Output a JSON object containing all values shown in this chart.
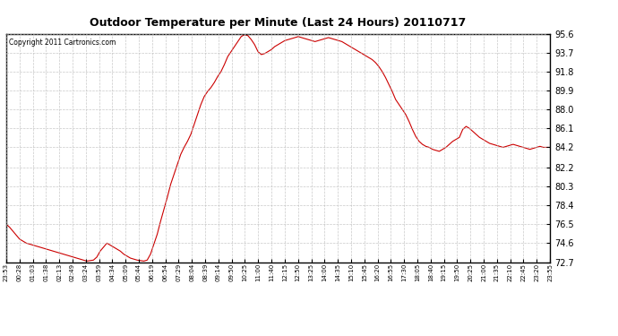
{
  "title": "Outdoor Temperature per Minute (Last 24 Hours) 20110717",
  "copyright": "Copyright 2011 Cartronics.com",
  "line_color": "#cc0000",
  "bg_color": "#ffffff",
  "plot_bg_color": "#ffffff",
  "grid_color": "#bbbbbb",
  "yticks": [
    72.7,
    74.6,
    76.5,
    78.4,
    80.3,
    82.2,
    84.2,
    86.1,
    88.0,
    89.9,
    91.8,
    93.7,
    95.6
  ],
  "ylim": [
    72.7,
    95.6
  ],
  "xtick_labels": [
    "23:53",
    "00:28",
    "01:03",
    "01:38",
    "02:13",
    "02:49",
    "03:24",
    "03:59",
    "04:34",
    "05:09",
    "05:44",
    "06:19",
    "06:54",
    "07:29",
    "08:04",
    "08:39",
    "09:14",
    "09:50",
    "10:25",
    "11:00",
    "11:40",
    "12:15",
    "12:50",
    "13:25",
    "14:00",
    "14:35",
    "15:10",
    "15:45",
    "16:20",
    "16:55",
    "17:30",
    "18:05",
    "18:40",
    "19:15",
    "19:50",
    "20:25",
    "21:00",
    "21:35",
    "22:10",
    "22:45",
    "23:20",
    "23:55"
  ],
  "temperature_profile": [
    76.5,
    76.2,
    75.8,
    75.4,
    75.0,
    74.8,
    74.6,
    74.5,
    74.4,
    74.3,
    74.2,
    74.1,
    74.0,
    73.9,
    73.8,
    73.7,
    73.6,
    73.5,
    73.4,
    73.3,
    73.2,
    73.1,
    73.0,
    72.9,
    72.8,
    72.85,
    72.9,
    73.2,
    73.8,
    74.2,
    74.6,
    74.4,
    74.2,
    74.0,
    73.8,
    73.5,
    73.3,
    73.1,
    73.0,
    72.9,
    72.85,
    72.8,
    72.9,
    73.5,
    74.5,
    75.5,
    76.8,
    78.0,
    79.2,
    80.5,
    81.5,
    82.5,
    83.5,
    84.2,
    84.8,
    85.5,
    86.5,
    87.5,
    88.5,
    89.3,
    89.8,
    90.2,
    90.7,
    91.3,
    91.8,
    92.5,
    93.3,
    93.8,
    94.3,
    94.8,
    95.3,
    95.5,
    95.4,
    95.0,
    94.5,
    93.8,
    93.5,
    93.6,
    93.8,
    94.0,
    94.3,
    94.5,
    94.7,
    94.9,
    95.0,
    95.1,
    95.2,
    95.3,
    95.2,
    95.1,
    95.0,
    94.9,
    94.8,
    94.9,
    95.0,
    95.1,
    95.2,
    95.1,
    95.0,
    94.9,
    94.8,
    94.6,
    94.4,
    94.2,
    94.0,
    93.8,
    93.6,
    93.4,
    93.2,
    93.0,
    92.7,
    92.3,
    91.8,
    91.2,
    90.5,
    89.8,
    89.0,
    88.5,
    88.0,
    87.5,
    86.8,
    86.0,
    85.3,
    84.8,
    84.5,
    84.3,
    84.2,
    84.0,
    83.9,
    83.8,
    84.0,
    84.2,
    84.5,
    84.8,
    85.0,
    85.2,
    86.0,
    86.3,
    86.1,
    85.8,
    85.5,
    85.2,
    85.0,
    84.8,
    84.6,
    84.5,
    84.4,
    84.3,
    84.2,
    84.3,
    84.4,
    84.5,
    84.4,
    84.3,
    84.2,
    84.1,
    84.0,
    84.1,
    84.2,
    84.3,
    84.2,
    84.2,
    84.2
  ]
}
